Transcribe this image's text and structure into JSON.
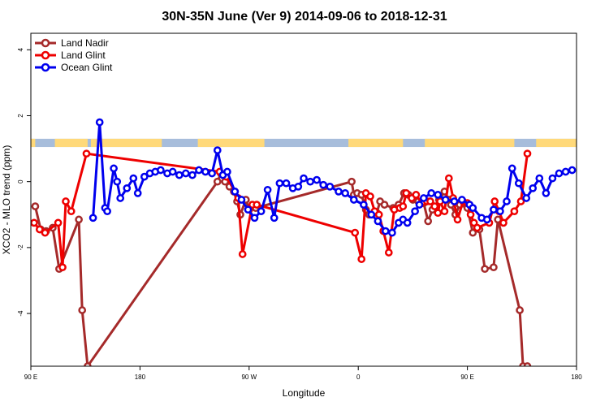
{
  "chart_data": {
    "type": "line",
    "title": "30N-35N June (Ver 9)   2014-09-06 to 2018-12-31",
    "xlabel": "Longitude",
    "ylabel": "XCO2 - MLO trend (ppm)",
    "xlim": [
      0,
      500
    ],
    "ylim": [
      -5.6,
      4.5
    ],
    "x_ticks": [
      {
        "value": 0,
        "label": "90 E"
      },
      {
        "value": 100,
        "label": "180"
      },
      {
        "value": 200,
        "label": "90 W"
      },
      {
        "value": 300,
        "label": "0"
      },
      {
        "value": 400,
        "label": "90 E"
      },
      {
        "value": 500,
        "label": "180"
      }
    ],
    "y_ticks": [
      {
        "value": -4,
        "label": "-4"
      },
      {
        "value": -2,
        "label": "-2"
      },
      {
        "value": 0,
        "label": "0"
      },
      {
        "value": 2,
        "label": "2"
      },
      {
        "value": 4,
        "label": "4"
      }
    ],
    "grid": false,
    "legend_position": "top-left",
    "surface_band": {
      "y_top": 1.3,
      "y_bottom": 1.05,
      "ocean_color": "#a7bddb",
      "land_color": "#ffd97a",
      "land_ranges": [
        [
          0,
          4
        ],
        [
          22,
          52
        ],
        [
          55,
          120
        ],
        [
          153,
          214
        ],
        [
          291,
          341
        ],
        [
          361,
          443
        ],
        [
          463,
          500
        ]
      ]
    },
    "series": [
      {
        "name": "Land Nadir",
        "color": "#a52a2a",
        "x": [
          4,
          9,
          14,
          20,
          26,
          44,
          47,
          52,
          171,
          174,
          178,
          182,
          186,
          189,
          192,
          197,
          200,
          203,
          206,
          294,
          296,
          299,
          303,
          307,
          310,
          317,
          320,
          324,
          332,
          337,
          342,
          346,
          350,
          355,
          360,
          364,
          368,
          374,
          379,
          383,
          385,
          389,
          393,
          400,
          405,
          411,
          416,
          424,
          428,
          448,
          451,
          455
        ],
        "y": [
          -0.75,
          -1.45,
          -1.5,
          -1.4,
          -2.65,
          -1.15,
          -3.9,
          -5.6,
          0.0,
          0.25,
          0.0,
          -0.15,
          -0.3,
          -0.6,
          -1.0,
          -0.55,
          -0.85,
          -0.75,
          -0.8,
          0.0,
          -0.4,
          -0.35,
          -0.4,
          -0.85,
          -1.0,
          -0.95,
          -0.6,
          -0.7,
          -0.8,
          -0.7,
          -0.35,
          -0.4,
          -0.55,
          -0.6,
          -0.65,
          -1.2,
          -0.85,
          -0.55,
          -0.3,
          -0.55,
          -0.7,
          -1.0,
          -0.7,
          -0.8,
          -1.55,
          -1.45,
          -2.65,
          -2.6,
          -1.15,
          -3.9,
          -5.6,
          -5.6
        ]
      },
      {
        "name": "Land Glint",
        "color": "#ee0000",
        "x": [
          3,
          8,
          13,
          25,
          29,
          32,
          37,
          51,
          173,
          179,
          187,
          190,
          194,
          203,
          207,
          297,
          303,
          307,
          311,
          315,
          319,
          323,
          328,
          333,
          338,
          341,
          344,
          349,
          353,
          358,
          363,
          366,
          370,
          373,
          375,
          379,
          383,
          387,
          391,
          396,
          400,
          403,
          406,
          409,
          420,
          425,
          429,
          433,
          443,
          449,
          455
        ],
        "y": [
          -1.25,
          -1.45,
          -1.55,
          -1.25,
          -2.6,
          -0.6,
          -0.9,
          0.85,
          0.3,
          0.15,
          -0.3,
          -0.5,
          -2.2,
          -0.7,
          -0.7,
          -1.55,
          -2.35,
          -0.35,
          -0.45,
          -0.9,
          -1.0,
          -1.5,
          -2.15,
          -0.85,
          -0.8,
          -0.75,
          -0.35,
          -0.5,
          -0.4,
          -0.65,
          -0.6,
          -0.6,
          -0.75,
          -0.95,
          -0.6,
          -0.9,
          0.1,
          -0.5,
          -1.15,
          -0.6,
          -0.65,
          -1.0,
          -1.25,
          -1.4,
          -1.25,
          -0.6,
          -0.9,
          -1.25,
          -0.9,
          -0.6,
          0.85
        ]
      },
      {
        "name": "Ocean Glint",
        "color": "#0000ee",
        "x": [
          57,
          63,
          68,
          70,
          76,
          79,
          82,
          88,
          94,
          98,
          104,
          109,
          114,
          119,
          125,
          130,
          136,
          142,
          148,
          154,
          160,
          166,
          171,
          176,
          180,
          187,
          193,
          199,
          205,
          211,
          217,
          223,
          228,
          234,
          240,
          245,
          250,
          256,
          262,
          268,
          274,
          282,
          288,
          296,
          305,
          312,
          318,
          325,
          331,
          337,
          341,
          345,
          352,
          356,
          360,
          367,
          373,
          380,
          388,
          395,
          402,
          405,
          413,
          418,
          424,
          430,
          436,
          441,
          447,
          454,
          460,
          466,
          472,
          478,
          484,
          490,
          496
        ],
        "y": [
          -1.1,
          1.8,
          -0.8,
          -0.9,
          0.4,
          0.0,
          -0.5,
          -0.2,
          0.1,
          -0.35,
          0.15,
          0.25,
          0.3,
          0.35,
          0.25,
          0.3,
          0.2,
          0.25,
          0.2,
          0.35,
          0.3,
          0.25,
          0.95,
          0.2,
          0.3,
          -0.3,
          -0.55,
          -0.85,
          -1.1,
          -0.9,
          -0.25,
          -1.1,
          -0.05,
          -0.05,
          -0.2,
          -0.15,
          0.1,
          0.0,
          0.05,
          -0.1,
          -0.15,
          -0.3,
          -0.35,
          -0.55,
          -0.7,
          -1.0,
          -1.2,
          -1.5,
          -1.55,
          -1.25,
          -1.15,
          -1.25,
          -0.9,
          -0.7,
          -0.5,
          -0.35,
          -0.4,
          -0.55,
          -0.6,
          -0.55,
          -0.7,
          -0.8,
          -1.1,
          -1.15,
          -0.85,
          -0.9,
          -0.6,
          0.4,
          -0.05,
          -0.5,
          -0.2,
          0.1,
          -0.35,
          0.1,
          0.25,
          0.3,
          0.35
        ]
      }
    ]
  }
}
